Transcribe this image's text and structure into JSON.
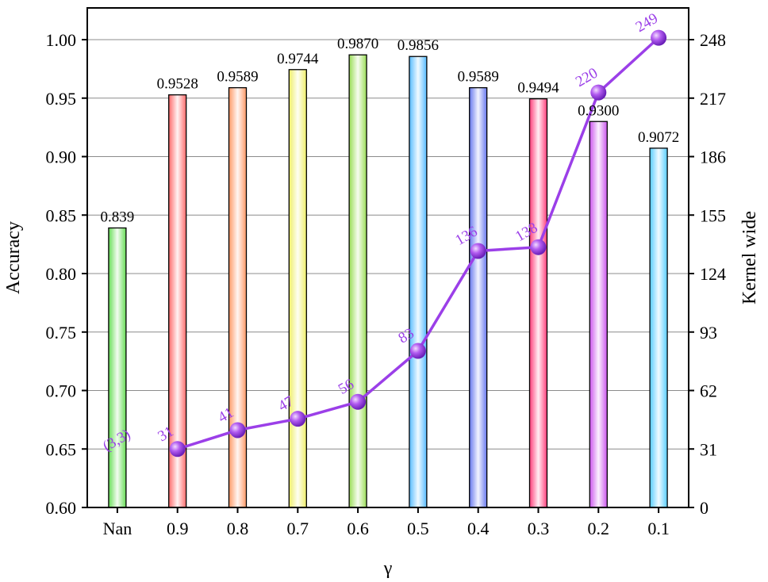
{
  "chart_data": {
    "type": "bar+line",
    "xlabel": "γ",
    "ylabel_left": "Accuracy",
    "ylabel_right": "Kernel wide",
    "categories": [
      "Nan",
      "0.9",
      "0.8",
      "0.7",
      "0.6",
      "0.5",
      "0.4",
      "0.3",
      "0.2",
      "0.1"
    ],
    "accuracy": {
      "values": [
        0.839,
        0.9528,
        0.9589,
        0.9744,
        0.987,
        0.9856,
        0.9589,
        0.9494,
        0.93,
        0.9072
      ],
      "labels": [
        "0.839",
        "0.9528",
        "0.9589",
        "0.9744",
        "0.9870",
        "0.9856",
        "0.9589",
        "0.9494",
        "0.9300",
        "0.9072"
      ],
      "colors": [
        "#66dd55",
        "#ff6a6a",
        "#ff9966",
        "#eeee66",
        "#99dd55",
        "#55bbff",
        "#6677ee",
        "#ff3d7a",
        "#cc55ee",
        "#55ccff"
      ]
    },
    "kernel_wide": {
      "values": [
        null,
        31,
        41,
        47,
        56,
        83,
        136,
        138,
        220,
        249
      ],
      "labels": [
        "(3,3)",
        "31",
        "41",
        "47",
        "56",
        "83",
        "136",
        "138",
        "220",
        "249"
      ],
      "color": "#9b3fe8"
    },
    "ylim_left": [
      0.6,
      1.0
    ],
    "yticks_left": [
      "0.60",
      "0.65",
      "0.70",
      "0.75",
      "0.80",
      "0.85",
      "0.90",
      "0.95",
      "1.00"
    ],
    "ylim_right": [
      0,
      248
    ],
    "yticks_right": [
      "0",
      "31",
      "62",
      "93",
      "124",
      "155",
      "186",
      "217",
      "248"
    ],
    "grid": true
  }
}
